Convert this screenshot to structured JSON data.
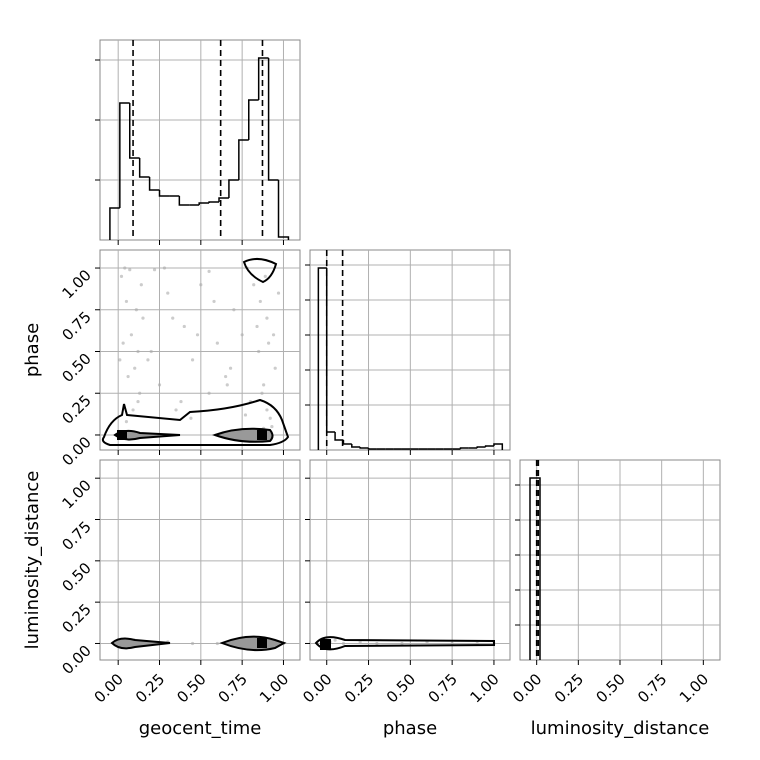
{
  "chart_data": [
    {
      "type": "histogram",
      "color": "#000000",
      "grid": true,
      "xlim": [
        -0.11,
        1.1
      ],
      "bins": [
        -0.05,
        0.01,
        0.07,
        0.13,
        0.19,
        0.25,
        0.31,
        0.37,
        0.43,
        0.49,
        0.55,
        0.61,
        0.67,
        0.73,
        0.79,
        0.85,
        0.91,
        0.97,
        1.03
      ],
      "counts": [
        32,
        137,
        82,
        63,
        50,
        44,
        44,
        35,
        35,
        37,
        38,
        42,
        60,
        100,
        140,
        182,
        60,
        3
      ],
      "ylim": [
        0,
        200
      ],
      "yticks": [
        60,
        120,
        180
      ],
      "quantiles": [
        0.09,
        0.62,
        0.873
      ]
    },
    {
      "type": "scatter",
      "color": "#aaaaaa",
      "grid": true,
      "ylabel": "phase",
      "xlim": [
        -0.11,
        1.1
      ],
      "ylim": [
        -0.09,
        1.108
      ],
      "yticks": [
        {
          "value": 0,
          "label": "0.00"
        },
        {
          "value": 0.25,
          "label": "0.25"
        },
        {
          "value": 0.5,
          "label": "0.50"
        },
        {
          "value": 0.75,
          "label": "0.75"
        },
        {
          "value": 1,
          "label": "1.00"
        }
      ],
      "x": [
        0.02,
        0.05,
        0.08,
        0.1,
        0.12,
        0.04,
        0.07,
        0.15,
        0.2,
        0.25,
        0.3,
        0.35,
        0.4,
        0.45,
        0.5,
        0.55,
        0.6,
        0.65,
        0.7,
        0.75,
        0.8,
        0.82,
        0.85,
        0.88,
        0.9,
        0.92,
        0.95,
        0.97,
        0.03,
        0.06,
        0.09,
        0.11,
        0.14,
        0.18,
        0.28,
        0.38,
        0.48,
        0.58,
        0.68,
        0.78,
        0.84,
        0.87,
        0.89,
        0.91,
        0.93,
        0.01,
        0.13,
        0.22,
        0.33,
        0.44,
        0.55,
        0.66,
        0.77,
        0.86,
        0.94,
        0.08,
        0.9,
        0.05,
        0.88,
        0.12
      ],
      "y": [
        0.95,
        0.8,
        0.6,
        0.4,
        0.2,
        1.0,
        0.99,
        0.7,
        0.5,
        0.3,
        0.85,
        0.15,
        0.65,
        0.45,
        0.9,
        0.25,
        0.55,
        0.35,
        0.75,
        0.6,
        0.2,
        0.9,
        0.5,
        0.3,
        0.7,
        0.1,
        0.4,
        0.85,
        0.55,
        0.35,
        0.15,
        0.75,
        0.9,
        0.45,
        1.0,
        0.2,
        0.6,
        0.8,
        0.4,
        1.0,
        0.65,
        0.25,
        0.95,
        0.55,
        0.05,
        0.45,
        0.25,
        0.99,
        0.7,
        0.1,
        0.98,
        0.3,
        0.12,
        0.8,
        0.6,
        0.02,
        0.15,
        0.08,
        0.04,
        0.5
      ]
    },
    {
      "type": "histogram",
      "color": "#000000",
      "grid": true,
      "xlim": [
        -0.1,
        1.096
      ],
      "bins": [
        -0.05,
        0.0,
        0.05,
        0.1,
        0.15,
        0.2,
        0.25,
        0.3,
        0.35,
        0.4,
        0.45,
        0.5,
        0.55,
        0.6,
        0.65,
        0.7,
        0.75,
        0.8,
        0.85,
        0.9,
        0.95,
        1.0,
        1.05
      ],
      "counts": [
        182,
        18,
        10,
        6,
        3,
        2,
        1,
        1,
        1,
        1,
        1,
        1,
        1,
        1,
        1,
        1,
        1,
        2,
        2,
        3,
        4,
        6
      ],
      "ylim": [
        0,
        200
      ],
      "yticks": [
        45,
        80,
        115,
        150,
        185
      ],
      "quantiles": [
        0.0,
        0.095
      ]
    },
    {
      "type": "scatter",
      "color": "#aaaaaa",
      "grid": true,
      "xlabel": "geocent_time",
      "ylabel": "luminosity_distance",
      "xlim": [
        -0.11,
        1.1
      ],
      "ylim": [
        -0.1,
        1.11
      ],
      "xticks": [
        {
          "value": 0,
          "label": "0.00"
        },
        {
          "value": 0.25,
          "label": "0.25"
        },
        {
          "value": 0.5,
          "label": "0.50"
        },
        {
          "value": 0.75,
          "label": "0.75"
        },
        {
          "value": 1,
          "label": "1.00"
        }
      ],
      "yticks": [
        {
          "value": 0,
          "label": "0.00"
        },
        {
          "value": 0.25,
          "label": "0.25"
        },
        {
          "value": 0.5,
          "label": "0.50"
        },
        {
          "value": 0.75,
          "label": "0.75"
        },
        {
          "value": 1,
          "label": "1.00"
        }
      ],
      "x": [
        0.0,
        0.05,
        0.1,
        0.2,
        0.3,
        0.45,
        0.6,
        0.75,
        0.85,
        0.9,
        0.95,
        1.0
      ],
      "y": [
        0.01,
        0.0,
        0.02,
        0.0,
        0.01,
        0.0,
        0.0,
        0.01,
        0.02,
        0.0,
        0.01,
        0.0
      ]
    },
    {
      "type": "scatter",
      "color": "#aaaaaa",
      "grid": true,
      "xlabel": "phase",
      "xlim": [
        -0.1,
        1.096
      ],
      "ylim": [
        -0.1,
        1.11
      ],
      "xticks": [
        {
          "value": 0,
          "label": "0.00"
        },
        {
          "value": 0.25,
          "label": "0.25"
        },
        {
          "value": 0.5,
          "label": "0.50"
        },
        {
          "value": 0.75,
          "label": "0.75"
        },
        {
          "value": 1,
          "label": "1.00"
        }
      ],
      "x": [
        0.0,
        0.02,
        0.05,
        0.1,
        0.2,
        0.3,
        0.45,
        0.6,
        0.75,
        0.9,
        1.0
      ],
      "y": [
        0.0,
        0.01,
        0.02,
        0.0,
        0.01,
        0.0,
        0.0,
        0.01,
        0.0,
        0.0,
        0.0
      ]
    },
    {
      "type": "histogram",
      "color": "#000000",
      "grid": true,
      "xlabel": "luminosity_distance",
      "xlim": [
        -0.1,
        1.1
      ],
      "xticks": [
        {
          "value": 0,
          "label": "0.00"
        },
        {
          "value": 0.25,
          "label": "0.25"
        },
        {
          "value": 0.5,
          "label": "0.50"
        },
        {
          "value": 0.75,
          "label": "0.75"
        },
        {
          "value": 1,
          "label": "1.00"
        }
      ],
      "bins": [
        -0.04,
        0.02
      ],
      "counts": [
        182
      ],
      "ylim": [
        0,
        200
      ],
      "yticks": [
        35,
        70,
        105,
        140,
        175
      ],
      "quantiles": [
        0.0,
        0.01
      ]
    }
  ]
}
